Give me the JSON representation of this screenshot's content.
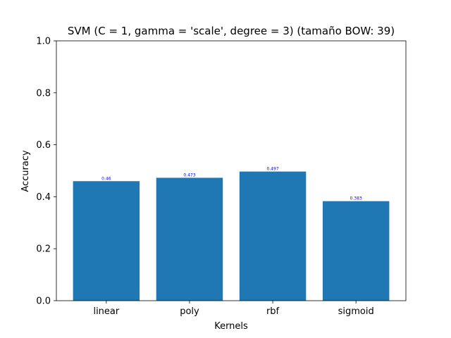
{
  "chart_data": {
    "type": "bar",
    "title": "SVM (C = 1, gamma = 'scale', degree = 3) (tamaño BOW: 39)",
    "xlabel": "Kernels",
    "ylabel": "Accuracy",
    "categories": [
      "linear",
      "poly",
      "rbf",
      "sigmoid"
    ],
    "values": [
      0.46,
      0.473,
      0.497,
      0.383
    ],
    "value_labels": [
      "0.46",
      "0.473",
      "0.497",
      "0.383"
    ],
    "ylim": [
      0,
      1
    ],
    "yticks": [
      0,
      0.2,
      0.4,
      0.6,
      0.8,
      1.0
    ],
    "ytick_labels": [
      "0.0",
      "0.2",
      "0.4",
      "0.6",
      "0.8",
      "1.0"
    ],
    "grid": false,
    "legend": "none",
    "bar_color": "#1f77b4",
    "value_label_color": "#0000ff"
  }
}
